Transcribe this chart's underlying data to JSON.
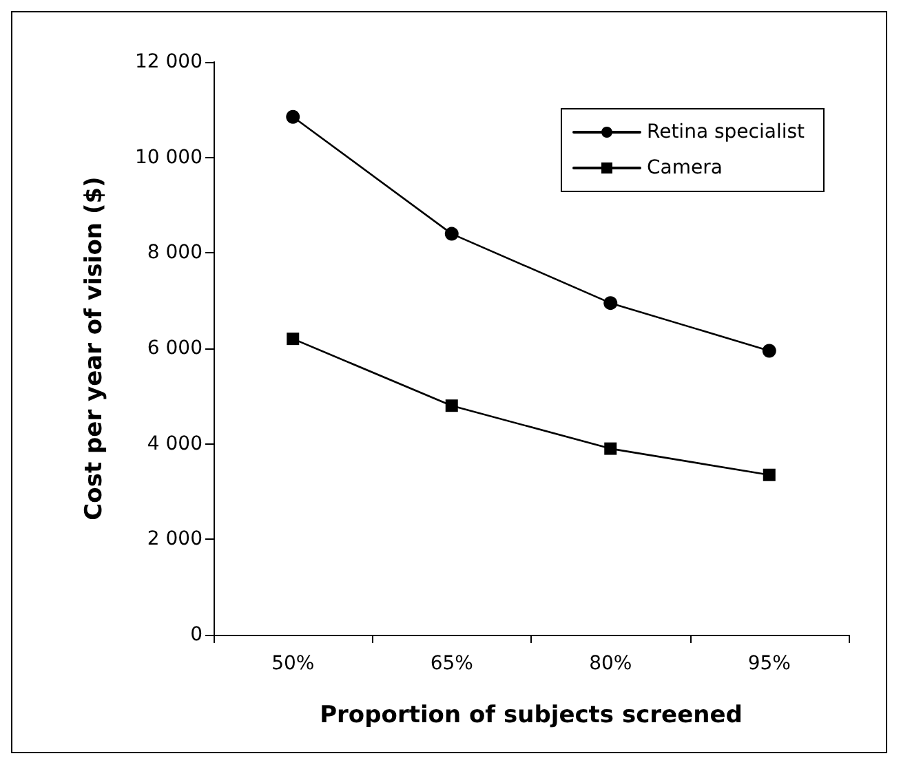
{
  "chart_data": {
    "type": "line",
    "xlabel": "Proportion of subjects screened",
    "ylabel": "Cost per year of vision ($)",
    "categories": [
      "50%",
      "65%",
      "80%",
      "95%"
    ],
    "series": [
      {
        "name": "Retina specialist",
        "color": "#000000",
        "marker": "circle",
        "values": [
          10850,
          8400,
          6950,
          5950
        ]
      },
      {
        "name": "Camera",
        "color": "#000000",
        "marker": "square",
        "values": [
          6200,
          4800,
          3900,
          3350
        ]
      }
    ],
    "ylim": [
      0,
      12000
    ],
    "yticks": [
      0,
      {
        "value": 2000,
        "label": "2 000"
      },
      {
        "value": 4000,
        "label": "4 000"
      },
      {
        "value": 6000,
        "label": "6 000"
      },
      {
        "value": 8000,
        "label": "8 000"
      },
      {
        "value": 10000,
        "label": "10 000"
      },
      {
        "value": 12000,
        "label": "12 000"
      }
    ],
    "grid": false,
    "legend": "top right",
    "line_style": "solid"
  }
}
